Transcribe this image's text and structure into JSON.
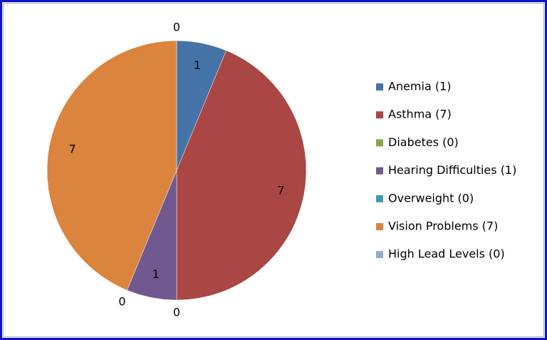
{
  "chart_data": {
    "type": "pie",
    "categories": [
      "Anemia (1)",
      "Asthma (7)",
      "Diabetes (0)",
      "Hearing Difficulties (1)",
      "Overweight (0)",
      "Vision Problems (7)",
      "High Lead Levels (0)"
    ],
    "values": [
      1,
      7,
      0,
      1,
      0,
      7,
      0
    ],
    "colors": [
      "#4572a7",
      "#aa4643",
      "#89a54e",
      "#71588f",
      "#4198af",
      "#db843d",
      "#93a9cf"
    ],
    "legend": "right"
  }
}
